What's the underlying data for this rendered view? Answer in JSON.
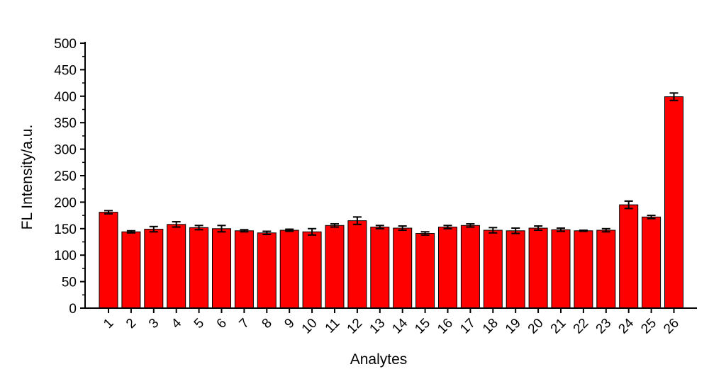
{
  "chart_data": {
    "type": "bar",
    "title": "",
    "xlabel": "Analytes",
    "ylabel": "FL Intensity/a.u.",
    "ylim": [
      0,
      500
    ],
    "yticks": [
      "0",
      "50",
      "100",
      "150",
      "200",
      "250",
      "300",
      "350",
      "400",
      "450",
      "500"
    ],
    "categories": [
      "1",
      "2",
      "3",
      "4",
      "5",
      "6",
      "7",
      "8",
      "9",
      "10",
      "11",
      "12",
      "13",
      "14",
      "15",
      "16",
      "17",
      "18",
      "19",
      "20",
      "21",
      "22",
      "23",
      "24",
      "25",
      "26"
    ],
    "values": [
      181,
      144,
      149,
      158,
      152,
      150,
      146,
      142,
      147,
      144,
      156,
      165,
      153,
      151,
      141,
      153,
      156,
      147,
      146,
      151,
      148,
      146,
      147,
      195,
      172,
      399
    ],
    "errors": [
      3,
      2,
      5,
      5,
      4,
      6,
      2,
      3,
      2,
      6,
      3,
      7,
      3,
      4,
      3,
      3,
      3,
      5,
      5,
      4,
      3,
      1,
      3,
      7,
      3,
      7
    ],
    "bar_color": "#ff0000",
    "bar_edge_color": "#000000",
    "grid": false,
    "legend": "none"
  }
}
